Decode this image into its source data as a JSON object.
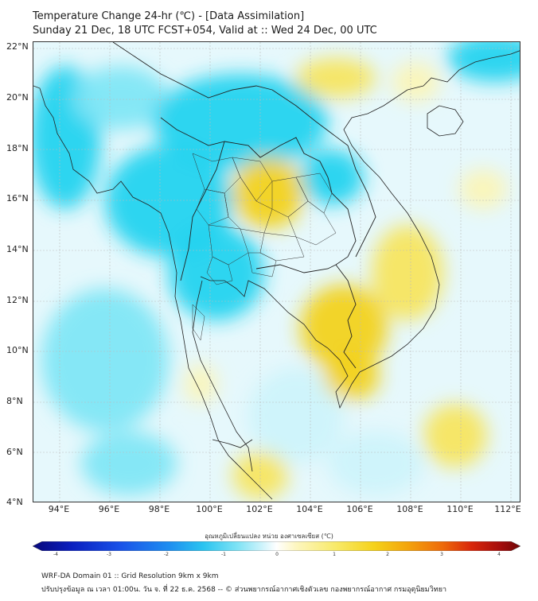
{
  "title": {
    "line1": "Temperature Change 24-hr (℃) - [Data Assimilation]",
    "line2": "Sunday 21 Dec, 18 UTC FCST+054, Valid at :: Wed 24 Dec, 00 UTC"
  },
  "axes": {
    "lat_labels": [
      "22°N",
      "20°N",
      "18°N",
      "16°N",
      "14°N",
      "12°N",
      "10°N",
      "8°N",
      "6°N",
      "4°N"
    ],
    "lon_labels": [
      "94°E",
      "96°E",
      "98°E",
      "100°E",
      "102°E",
      "104°E",
      "106°E",
      "108°E",
      "110°E",
      "112°E"
    ]
  },
  "colorbar": {
    "label": "อุณหภูมิเปลี่ยนแปลง หน่วย องศาเซลเซียส (℃)",
    "ticks": [
      "-4",
      "-3",
      "-2",
      "-1",
      "0",
      "1",
      "2",
      "3",
      "4"
    ],
    "colors": [
      "#08087a",
      "#0b1fbf",
      "#1a52e8",
      "#1e8ef0",
      "#2bc4f0",
      "#7fe3f5",
      "#cdf3fb",
      "#ffffff",
      "#fdf6c0",
      "#f8ea6a",
      "#f5d21a",
      "#f3a30c",
      "#ee6a0a",
      "#d8260b",
      "#a30d0d",
      "#6e0606"
    ]
  },
  "map_colors": {
    "cold_strong": "#23d3ef",
    "cold_mid": "#7fe6f6",
    "cold_light": "#cdf3fb",
    "warm_light": "#fbf4b6",
    "warm_mid": "#f7e55f",
    "warm_strong": "#f2d21c",
    "land_line": "#222222"
  },
  "footer": {
    "line1": "WRF-DA Domain 01 :: Grid Resolution 9km x 9km",
    "line2": "ปรับปรุงข้อมูล ณ เวลา 01:00น. วัน จ. ที่ 22 ธ.ค. 2568 -- © ส่วนพยากรณ์อากาศเชิงตัวเลข กองพยากรณ์อากาศ กรมอุตุนิยมวิทยา"
  }
}
